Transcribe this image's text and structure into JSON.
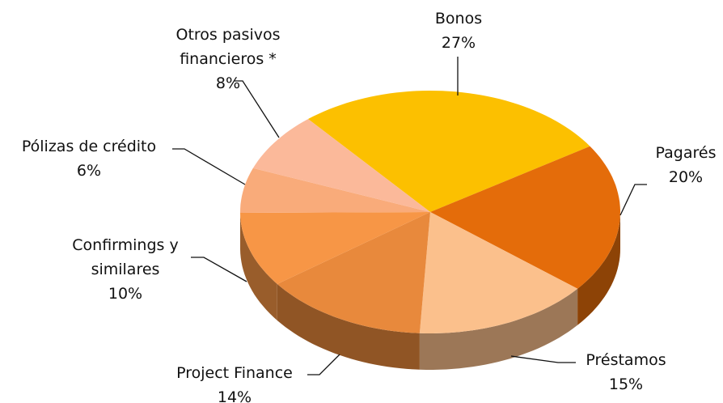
{
  "chart_data": {
    "type": "pie",
    "three_d": true,
    "categories": [
      "Bonos",
      "Pagarés",
      "Préstamos",
      "Project Finance",
      "Confirmings y similares",
      "Pólizas de crédito",
      "Otros pasivos financieros *"
    ],
    "values": [
      27,
      20,
      15,
      14,
      10,
      6,
      8
    ],
    "value_labels": [
      "27%",
      "20%",
      "15%",
      "14%",
      "10%",
      "6%",
      "8%"
    ],
    "colors": [
      "#fcc000",
      "#e46c0a",
      "#fbc08c",
      "#e8893c",
      "#f79646",
      "#f9ab7a",
      "#fbb99a"
    ]
  }
}
